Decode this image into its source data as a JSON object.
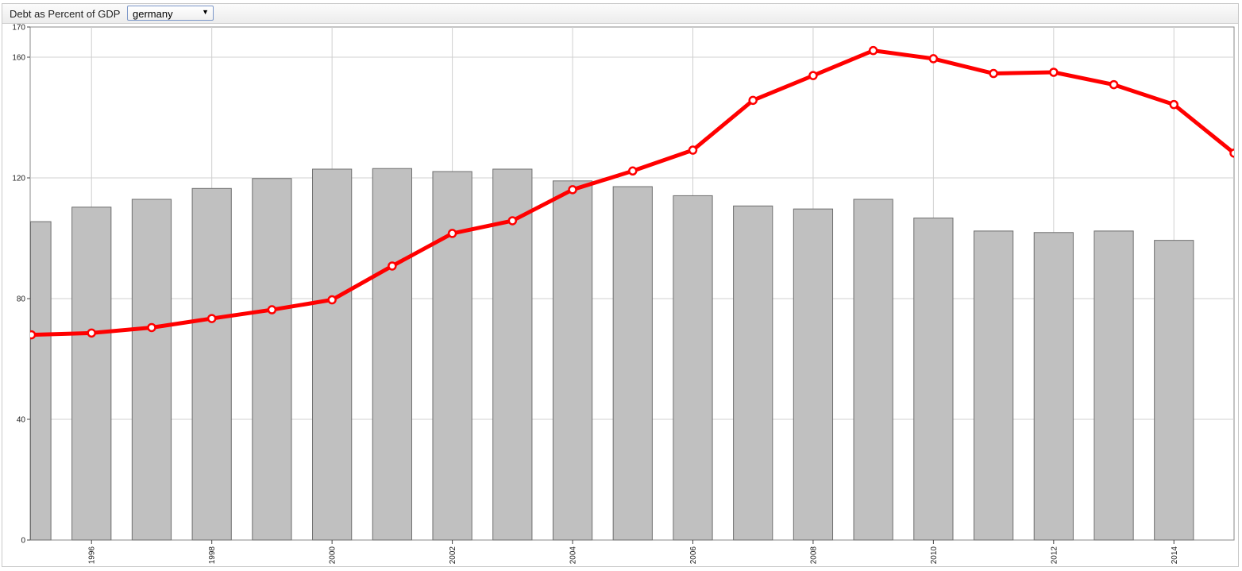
{
  "header": {
    "title": "Debt as Percent of GDP",
    "country_select": {
      "value": "germany",
      "arrow": "▼"
    }
  },
  "chart_data": {
    "type": "bar",
    "x": [
      1995,
      1996,
      1997,
      1998,
      1999,
      2000,
      2001,
      2002,
      2003,
      2004,
      2005,
      2006,
      2007,
      2008,
      2009,
      2010,
      2011,
      2012,
      2013,
      2014,
      2015
    ],
    "series": [
      {
        "type": "bar",
        "color": "#c0c0c0",
        "values": [
          105.5,
          110.3,
          112.9,
          116.5,
          119.8,
          122.9,
          123.1,
          122.1,
          122.9,
          119.0,
          117.1,
          114.1,
          110.7,
          109.7,
          112.9,
          106.7,
          102.4,
          101.9,
          102.4,
          99.3,
          null
        ]
      },
      {
        "type": "line",
        "color": "#ff0000",
        "values": [
          68.0,
          68.6,
          70.4,
          73.4,
          76.3,
          79.6,
          90.8,
          101.6,
          105.8,
          116.1,
          122.3,
          129.2,
          145.7,
          153.9,
          162.2,
          159.5,
          154.6,
          155.0,
          150.9,
          144.3,
          128.2
        ]
      }
    ],
    "ylim": [
      0,
      170
    ],
    "yticks": [
      0,
      40,
      80,
      120,
      160,
      170
    ],
    "xticks": [
      1996,
      1998,
      2000,
      2002,
      2004,
      2006,
      2008,
      2010,
      2012,
      2014
    ],
    "xlim": [
      1994.98,
      2015
    ],
    "grid": true
  }
}
